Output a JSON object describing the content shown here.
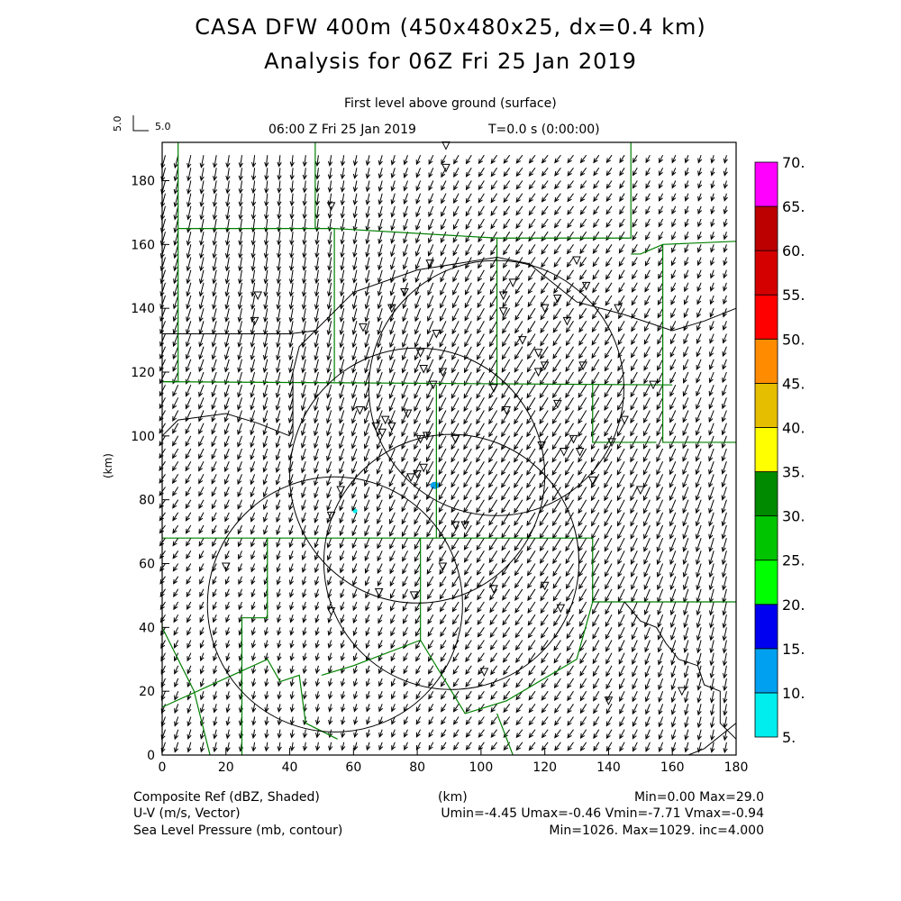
{
  "header": {
    "title_line1": "CASA DFW 400m (450x480x25, dx=0.4 km)",
    "title_line2": "Analysis for 06Z Fri 25 Jan 2019",
    "level": "First level above ground (surface)",
    "time": "06:00 Z Fri 25 Jan 2019",
    "model_time": "T=0.0 s (0:00:00)",
    "vector_ref_vertical": "5.0",
    "vector_ref_horizontal": "5.0"
  },
  "footer": {
    "line1_left": "Composite Ref (dBZ, Shaded)",
    "line1_mid": "(km)",
    "line1_right": "Min=0.00 Max=29.0",
    "line2_left": "U-V (m/s, Vector)",
    "line2_right": "Umin=-4.45 Umax=-0.46 Vmin=-7.71 Vmax=-0.94",
    "line3_left": "Sea Level Pressure (mb, contour)",
    "line3_right": "Min=1026. Max=1029. inc=4.000"
  },
  "chart_data": {
    "type": "heatmap",
    "title": "CASA DFW 400m (450x480x25, dx=0.4 km)",
    "xlabel": "(km)",
    "ylabel": "(km)",
    "xlim": [
      0,
      180
    ],
    "ylim": [
      0,
      192
    ],
    "xticks": [
      "0",
      "20",
      "40",
      "60",
      "80",
      "100",
      "120",
      "140",
      "160",
      "180"
    ],
    "yticks": [
      "0",
      "20",
      "40",
      "60",
      "80",
      "100",
      "120",
      "140",
      "160",
      "180"
    ],
    "colorbar": {
      "levels": [
        "5.",
        "10.",
        "15.",
        "20.",
        "25.",
        "30.",
        "35.",
        "40.",
        "45.",
        "50.",
        "55.",
        "60.",
        "65.",
        "70."
      ],
      "colors": [
        "#00eeee",
        "#00a0f0",
        "#0000f0",
        "#00ff00",
        "#00c400",
        "#008a00",
        "#ffff00",
        "#e6be00",
        "#ff8c00",
        "#ff0000",
        "#d40000",
        "#bc0000",
        "#ff00ff"
      ]
    },
    "reflectivity_echoes": [
      {
        "x_km": 85.5,
        "y_km": 84.5,
        "dbz": 12
      },
      {
        "x_km": 60.5,
        "y_km": 76.5,
        "dbz": 7
      }
    ],
    "wind": {
      "u_mean": -2.4,
      "v_mean": -5.2,
      "umin": -4.45,
      "umax": -0.46,
      "vmin": -7.71,
      "vmax": -0.94
    },
    "slp": {
      "min": 1026,
      "max": 1029,
      "inc": 4.0
    }
  }
}
